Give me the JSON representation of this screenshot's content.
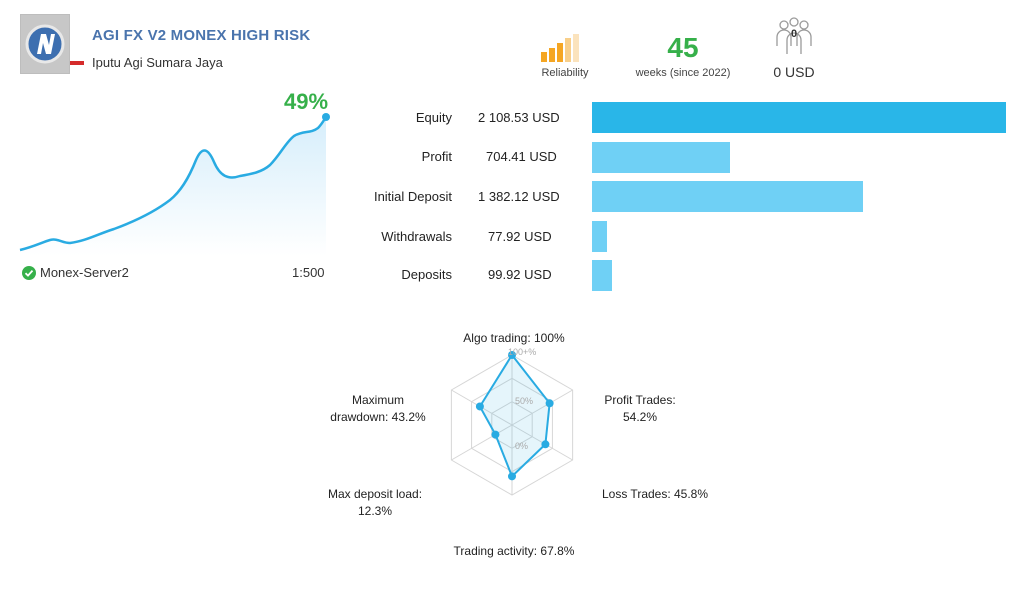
{
  "header": {
    "title": "AGI FX V2 MONEX HIGH RISK",
    "author": "Iputu Agi Sumara Jaya"
  },
  "stats": {
    "reliability_label": "Reliability",
    "weeks_value": "45",
    "weeks_label": "weeks (since 2022)",
    "subscribers_count": "0",
    "subscription_price": "0 USD"
  },
  "growth": {
    "percent": "49%",
    "server": "Monex-Server2",
    "leverage": "1:500"
  },
  "finance": [
    {
      "label": "Equity",
      "value": "2 108.53 USD",
      "amount": 2108.53
    },
    {
      "label": "Profit",
      "value": "704.41 USD",
      "amount": 704.41
    },
    {
      "label": "Initial Deposit",
      "value": "1 382.12 USD",
      "amount": 1382.12
    },
    {
      "label": "Withdrawals",
      "value": "77.92 USD",
      "amount": 77.92
    },
    {
      "label": "Deposits",
      "value": "99.92 USD",
      "amount": 99.92
    }
  ],
  "radar": {
    "scale_labels": [
      "100+%",
      "50%",
      "0%"
    ],
    "axes": [
      {
        "label_line1": "Algo trading: 100%",
        "label_line2": "",
        "value": 100
      },
      {
        "label_line1": "Profit Trades:",
        "label_line2": "54.2%",
        "value": 54.2
      },
      {
        "label_line1": "Loss Trades: 45.8%",
        "label_line2": "",
        "value": 45.8
      },
      {
        "label_line1": "Trading activity: 67.8%",
        "label_line2": "",
        "value": 67.8
      },
      {
        "label_line1": "Max deposit load:",
        "label_line2": "12.3%",
        "value": 12.3
      },
      {
        "label_line1": "Maximum",
        "label_line2": "drawdown: 43.2%",
        "value": 43.2
      }
    ]
  },
  "colors": {
    "accent": "#29abe2",
    "bar_primary": "#29b6e8",
    "bar_secondary": "#6fd0f5",
    "positive": "#36b04a",
    "title": "#4a74ad",
    "reliability_bar": "#f5a623"
  }
}
